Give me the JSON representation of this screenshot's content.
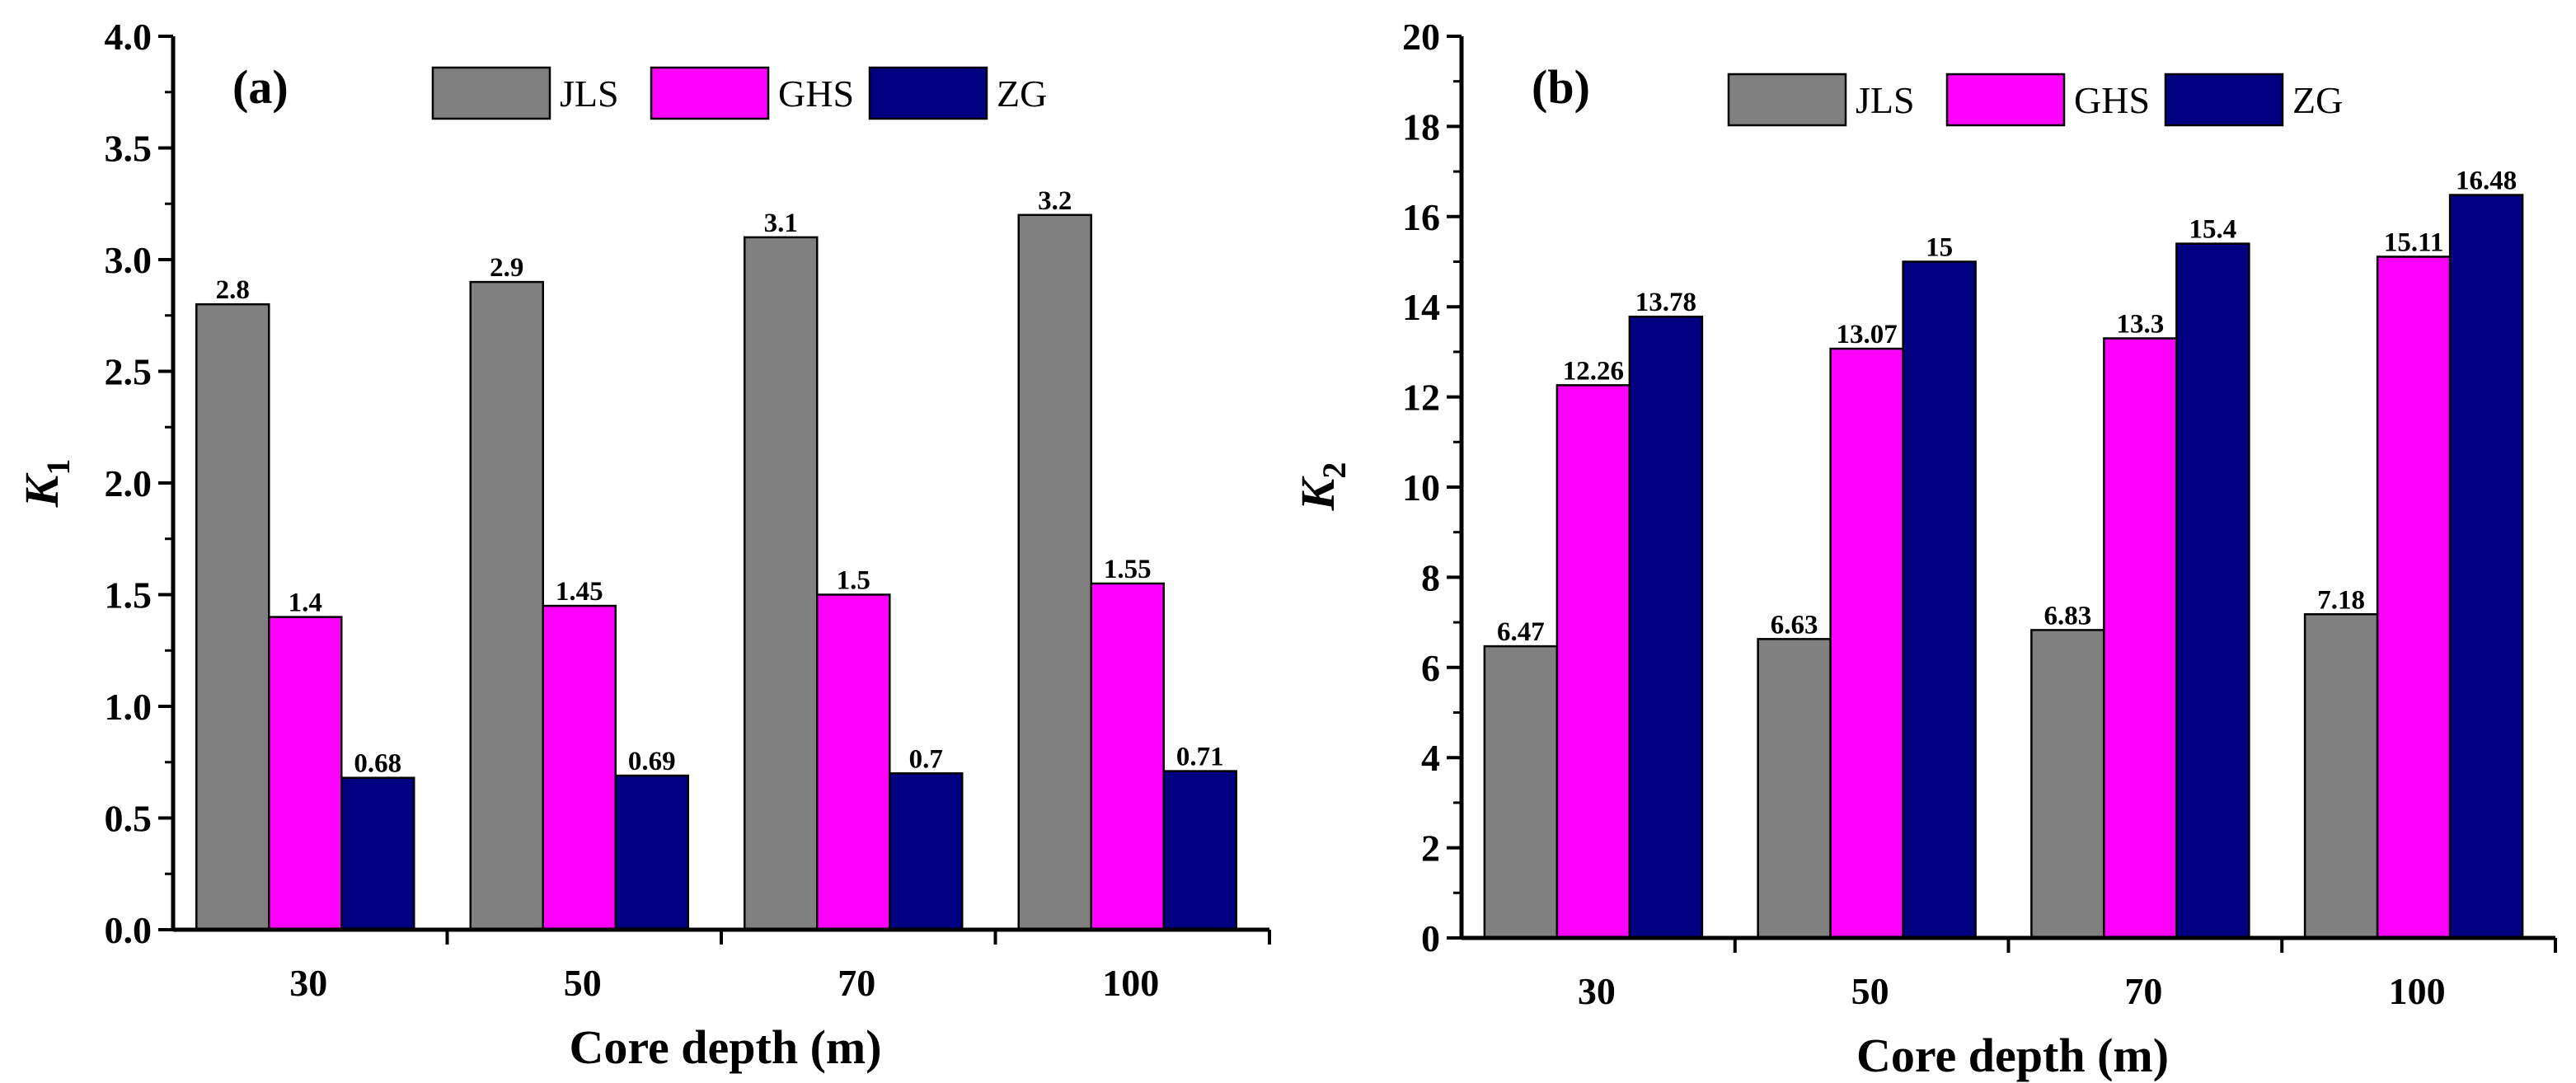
{
  "chart_data": [
    {
      "type": "bar",
      "panel_label": "(a)",
      "xlabel": "Core depth (m)",
      "ylabel_main": "K",
      "ylabel_sub": "1",
      "categories": [
        "30",
        "50",
        "70",
        "100"
      ],
      "ylim": [
        0,
        4.0
      ],
      "yticks": [
        "0.0",
        "0.5",
        "1.0",
        "1.5",
        "2.0",
        "2.5",
        "3.0",
        "3.5",
        "4.0"
      ],
      "legend_position": "top",
      "series": [
        {
          "name": "JLS",
          "color": "#808080",
          "values": [
            2.8,
            2.9,
            3.1,
            3.2
          ],
          "labels": [
            "2.8",
            "2.9",
            "3.1",
            "3.2"
          ]
        },
        {
          "name": "GHS",
          "color": "#ff00ff",
          "values": [
            1.4,
            1.45,
            1.5,
            1.55
          ],
          "labels": [
            "1.4",
            "1.45",
            "1.5",
            "1.55"
          ]
        },
        {
          "name": "ZG",
          "color": "#000080",
          "values": [
            0.68,
            0.69,
            0.7,
            0.71
          ],
          "labels": [
            "0.68",
            "0.69",
            "0.7",
            "0.71"
          ]
        }
      ]
    },
    {
      "type": "bar",
      "panel_label": "(b)",
      "xlabel": "Core depth (m)",
      "ylabel_main": "K",
      "ylabel_sub": "2",
      "categories": [
        "30",
        "50",
        "70",
        "100"
      ],
      "ylim": [
        0,
        20
      ],
      "yticks": [
        "0",
        "2",
        "4",
        "6",
        "8",
        "10",
        "12",
        "14",
        "16",
        "18",
        "20"
      ],
      "legend_position": "top",
      "series": [
        {
          "name": "JLS",
          "color": "#808080",
          "values": [
            6.47,
            6.63,
            6.83,
            7.18
          ],
          "labels": [
            "6.47",
            "6.63",
            "6.83",
            "7.18"
          ]
        },
        {
          "name": "GHS",
          "color": "#ff00ff",
          "values": [
            12.26,
            13.07,
            13.3,
            15.11
          ],
          "labels": [
            "12.26",
            "13.07",
            "13.3",
            "15.11"
          ]
        },
        {
          "name": "ZG",
          "color": "#000080",
          "values": [
            13.78,
            15,
            15.4,
            16.48
          ],
          "labels": [
            "13.78",
            "15",
            "15.4",
            "16.48"
          ]
        }
      ]
    }
  ]
}
